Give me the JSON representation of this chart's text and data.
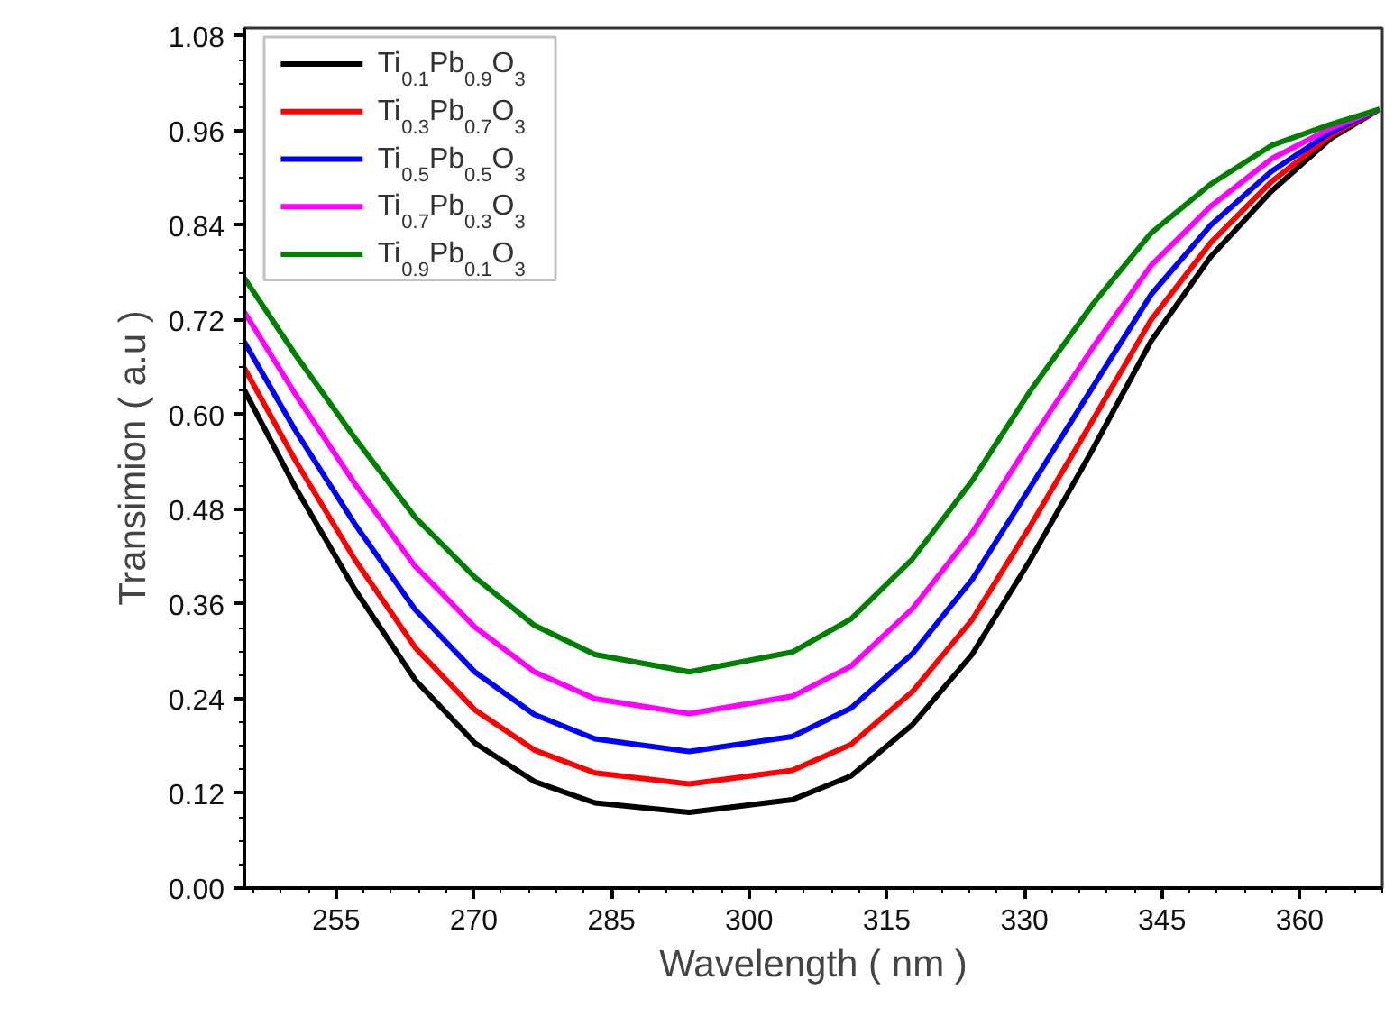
{
  "chart_data": {
    "type": "line",
    "xlabel": "Wavelength ( nm )",
    "ylabel": "Transimion ( a.u )",
    "x": [
      245.0,
      250.5,
      257.0,
      263.6,
      270.1,
      276.6,
      283.2,
      293.5,
      304.7,
      311.1,
      317.8,
      324.3,
      330.7,
      337.4,
      343.8,
      350.3,
      356.9,
      363.4,
      368.7
    ],
    "series": [
      {
        "name": "Ti$_{0.1}$Pb$_{0.9}$O$_{3}$",
        "color": "#000000",
        "values": [
          0.631,
          0.509,
          0.379,
          0.264,
          0.184,
          0.135,
          0.108,
          0.096,
          0.112,
          0.142,
          0.207,
          0.296,
          0.417,
          0.555,
          0.693,
          0.8,
          0.883,
          0.95,
          0.987
        ]
      },
      {
        "name": "Ti$_{0.3}$Pb$_{0.7}$O$_{3}$",
        "color": "#ff0000",
        "values": [
          0.659,
          0.543,
          0.417,
          0.305,
          0.226,
          0.175,
          0.146,
          0.132,
          0.149,
          0.182,
          0.249,
          0.34,
          0.46,
          0.592,
          0.72,
          0.818,
          0.895,
          0.954,
          0.987
        ]
      },
      {
        "name": "Ti$_{0.5}$Pb$_{0.5}$O$_{3}$",
        "color": "#0000ff",
        "values": [
          0.692,
          0.581,
          0.462,
          0.353,
          0.274,
          0.22,
          0.189,
          0.173,
          0.192,
          0.228,
          0.297,
          0.391,
          0.509,
          0.634,
          0.752,
          0.84,
          0.908,
          0.958,
          0.987
        ]
      },
      {
        "name": "Ti$_{0.7}$Pb$_{0.3}$O$_{3}$",
        "color": "#ff00ff",
        "values": [
          0.73,
          0.627,
          0.513,
          0.408,
          0.331,
          0.274,
          0.24,
          0.221,
          0.243,
          0.281,
          0.354,
          0.45,
          0.567,
          0.684,
          0.789,
          0.864,
          0.924,
          0.963,
          0.987
        ]
      },
      {
        "name": "Ti$_{0.9}$Pb$_{0.1}$O$_{3}$",
        "color": "#008000",
        "values": [
          0.773,
          0.677,
          0.571,
          0.47,
          0.394,
          0.333,
          0.296,
          0.274,
          0.299,
          0.341,
          0.417,
          0.516,
          0.631,
          0.739,
          0.83,
          0.892,
          0.941,
          0.968,
          0.987
        ]
      }
    ],
    "xlim": [
      245,
      369
    ],
    "ylim": [
      0,
      1.09
    ],
    "xticks": [
      255,
      270,
      285,
      300,
      315,
      330,
      345,
      360
    ],
    "yticks": [
      {
        "value": 0,
        "label": "0.00"
      },
      {
        "value": 0.12,
        "label": "0.12"
      },
      {
        "value": 0.24,
        "label": "0.24"
      },
      {
        "value": 0.36,
        "label": "0.36"
      },
      {
        "value": 0.48,
        "label": "0.48"
      },
      {
        "value": 0.6,
        "label": "0.60"
      },
      {
        "value": 0.72,
        "label": "0.72"
      },
      {
        "value": 0.84,
        "label": "0.84"
      },
      {
        "value": 0.96,
        "label": "0.96"
      },
      {
        "value": 1.08,
        "label": "1.08"
      }
    ],
    "legend": "top left",
    "grid": false,
    "marker": "none",
    "line_style": "solid"
  }
}
